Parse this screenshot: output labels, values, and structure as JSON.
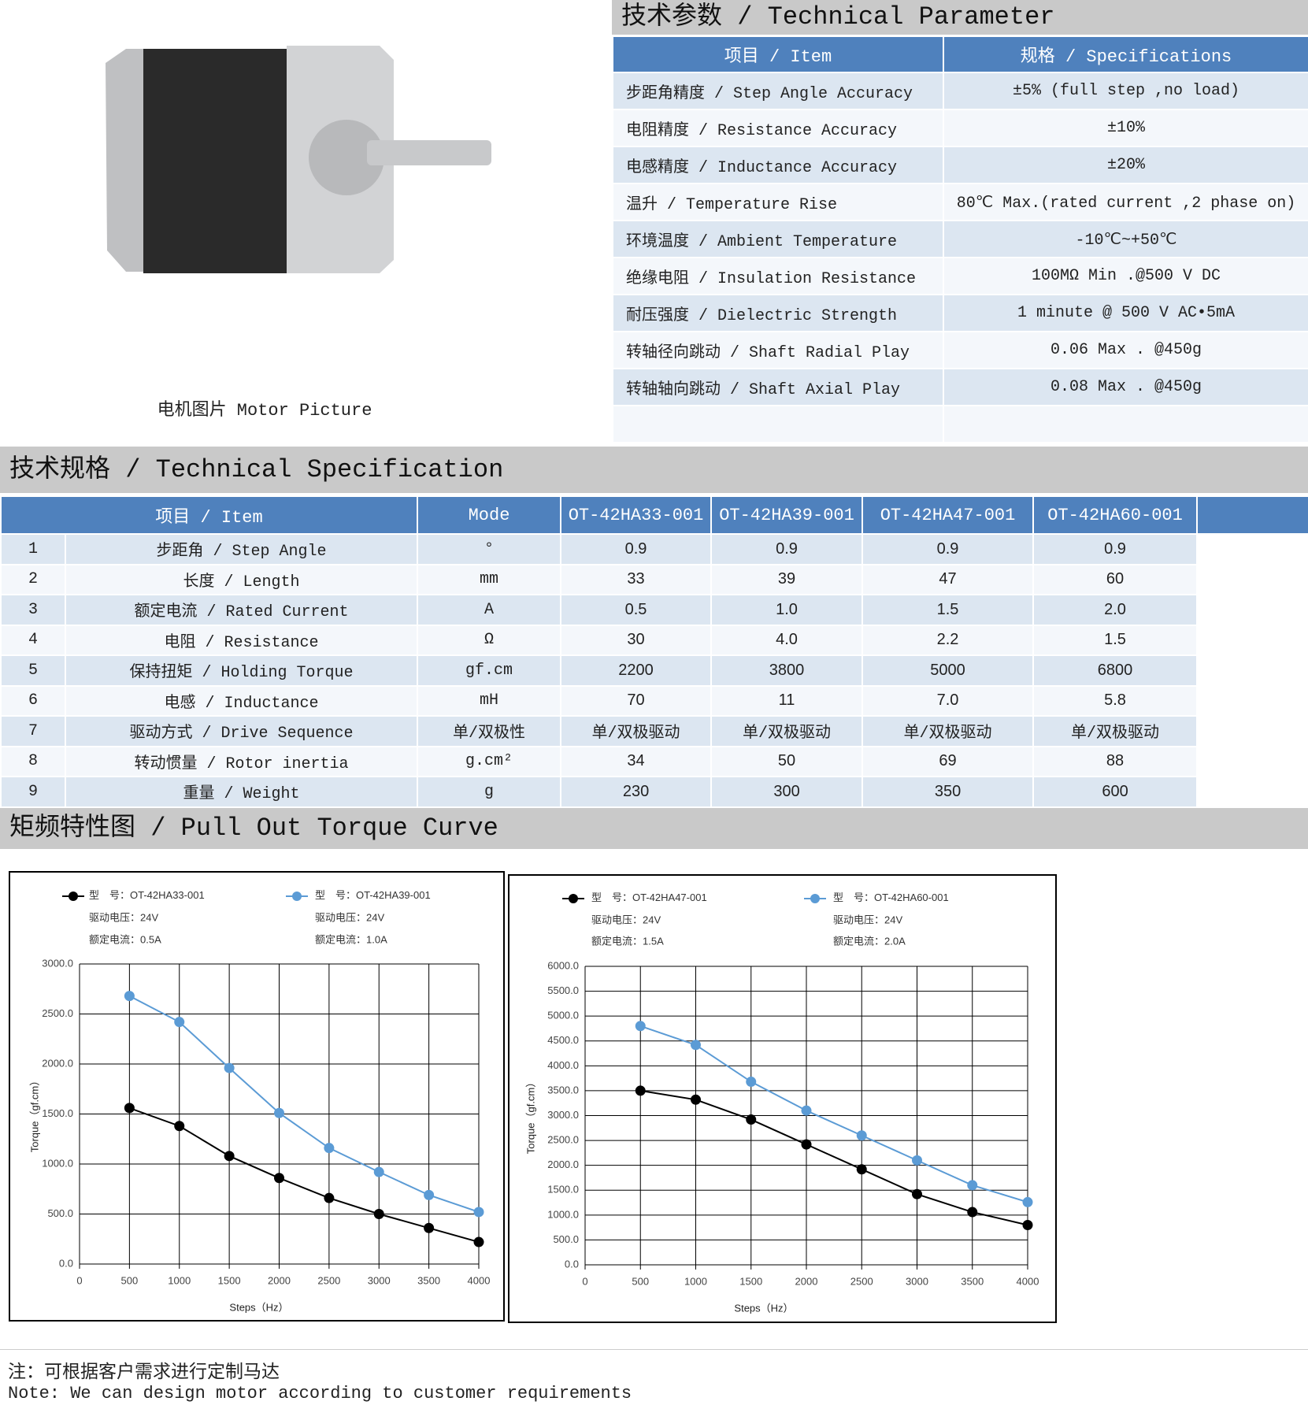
{
  "motor_picture": {
    "caption": "电机图片 Motor Picture"
  },
  "technical_parameter": {
    "title": "技术参数 / Technical Parameter",
    "header": [
      "项目 / Item",
      "规格 / Specifications"
    ],
    "rows": [
      [
        "步距角精度 / Step Angle Accuracy",
        "±5% (full step ,no load)"
      ],
      [
        "电阻精度 / Resistance Accuracy",
        "±10%"
      ],
      [
        "电感精度 / Inductance Accuracy",
        "±20%"
      ],
      [
        "温升 / Temperature Rise",
        "80℃ Max.(rated current ,2 phase on)"
      ],
      [
        "环境温度 / Ambient Temperature",
        "-10℃~+50℃"
      ],
      [
        "绝缘电阻 / Insulation Resistance",
        "100MΩ Min .@500 V DC"
      ],
      [
        "耐压强度 / Dielectric Strength",
        "1 minute @ 500 V AC•5mA"
      ],
      [
        "转轴径向跳动 / Shaft Radial Play",
        "0.06 Max . @450g"
      ],
      [
        "转轴轴向跳动 / Shaft Axial Play",
        "0.08 Max . @450g"
      ]
    ]
  },
  "technical_specification": {
    "title": "技术规格 / Technical Specification",
    "header": [
      "项目 / Item",
      "Mode",
      "OT-42HA33-001",
      "OT-42HA39-001",
      "OT-42HA47-001",
      "OT-42HA60-001"
    ],
    "rows": [
      [
        "1",
        "步距角 / Step Angle",
        "°",
        "0.9",
        "0.9",
        "0.9",
        "0.9"
      ],
      [
        "2",
        "长度 / Length",
        "mm",
        "33",
        "39",
        "47",
        "60"
      ],
      [
        "3",
        "额定电流 / Rated Current",
        "A",
        "0.5",
        "1.0",
        "1.5",
        "2.0"
      ],
      [
        "4",
        "电阻 / Resistance",
        "Ω",
        "30",
        "4.0",
        "2.2",
        "1.5"
      ],
      [
        "5",
        "保持扭矩 / Holding Torque",
        "gf.cm",
        "2200",
        "3800",
        "5000",
        "6800"
      ],
      [
        "6",
        "电感 / Inductance",
        "mH",
        "70",
        "11",
        "7.0",
        "5.8"
      ],
      [
        "7",
        "驱动方式 / Drive Sequence",
        "单/双极性",
        "单/双极驱动",
        "单/双极驱动",
        "单/双极驱动",
        "单/双极驱动"
      ],
      [
        "8",
        "转动惯量 / Rotor inertia",
        "g.cm²",
        "34",
        "50",
        "69",
        "88"
      ],
      [
        "9",
        "重量 / Weight",
        "g",
        "230",
        "300",
        "350",
        "600"
      ]
    ]
  },
  "torque_curve": {
    "title": "矩频特性图 / Pull Out Torque Curve",
    "charts": [
      {
        "type": "line",
        "xlabel": "Steps（Hz）",
        "ylabel": "Torque（gf.cm）",
        "grid": true,
        "x": [
          500,
          1000,
          1500,
          2000,
          2500,
          3000,
          3500,
          4000
        ],
        "xlim": [
          0,
          4000
        ],
        "xticks": [
          0,
          500,
          1000,
          1500,
          2000,
          2500,
          3000,
          3500,
          4000
        ],
        "ylim": [
          0,
          3000
        ],
        "yticks": [
          {
            "value": 0,
            "label": "0.0"
          },
          {
            "value": 500,
            "label": "500.0"
          },
          {
            "value": 1000,
            "label": "1000.0"
          },
          {
            "value": 1500,
            "label": "1500.0"
          },
          {
            "value": 2000,
            "label": "2000.0"
          },
          {
            "value": 2500,
            "label": "2500.0"
          },
          {
            "value": 3000,
            "label": "3000.0"
          }
        ],
        "series": [
          {
            "label": "型　号：",
            "name": "OT-42HA33-001",
            "voltage": "驱动电压：24V",
            "current": "额定电流：0.5A",
            "color": "#000000",
            "values": [
              1560,
              1380,
              1080,
              860,
              660,
              500,
              360,
              220
            ]
          },
          {
            "label": "型　号：",
            "name": "OT-42HA39-001",
            "voltage": "驱动电压：24V",
            "current": "额定电流：1.0A",
            "color": "#5b9bd5",
            "values": [
              2680,
              2420,
              1960,
              1510,
              1160,
              920,
              690,
              520
            ]
          }
        ]
      },
      {
        "type": "line",
        "xlabel": "Steps（Hz）",
        "ylabel": "Torque（gf.cm）",
        "grid": true,
        "x": [
          500,
          1000,
          1500,
          2000,
          2500,
          3000,
          3500,
          4000
        ],
        "xlim": [
          0,
          4000
        ],
        "xticks": [
          0,
          500,
          1000,
          1500,
          2000,
          2500,
          3000,
          3500,
          4000
        ],
        "ylim": [
          0,
          6000
        ],
        "yticks": [
          {
            "value": 0,
            "label": "0.0"
          },
          {
            "value": 500,
            "label": "500.0"
          },
          {
            "value": 1000,
            "label": "1000.0"
          },
          {
            "value": 1500,
            "label": "1500.0"
          },
          {
            "value": 2000,
            "label": "2000.0"
          },
          {
            "value": 2500,
            "label": "2500.0"
          },
          {
            "value": 3000,
            "label": "3000.0"
          },
          {
            "value": 3500,
            "label": "3500.0"
          },
          {
            "value": 4000,
            "label": "4000.0"
          },
          {
            "value": 4500,
            "label": "4500.0"
          },
          {
            "value": 5000,
            "label": "5000.0"
          },
          {
            "value": 5500,
            "label": "5500.0"
          },
          {
            "value": 6000,
            "label": "6000.0"
          }
        ],
        "series": [
          {
            "label": "型　号：",
            "name": "OT-42HA47-001",
            "voltage": "驱动电压：24V",
            "current": "额定电流：1.5A",
            "color": "#000000",
            "values": [
              3500,
              3320,
              2920,
              2420,
              1920,
              1420,
              1060,
              800
            ]
          },
          {
            "label": "型　号：",
            "name": "OT-42HA60-001",
            "voltage": "驱动电压：24V",
            "current": "额定电流：2.0A",
            "color": "#5b9bd5",
            "values": [
              4800,
              4420,
              3680,
              3100,
              2600,
              2100,
              1600,
              1260
            ]
          }
        ]
      }
    ]
  },
  "note": {
    "zh": "注：可根据客户需求进行定制马达",
    "en": "Note: We can design motor according to customer requirements"
  }
}
